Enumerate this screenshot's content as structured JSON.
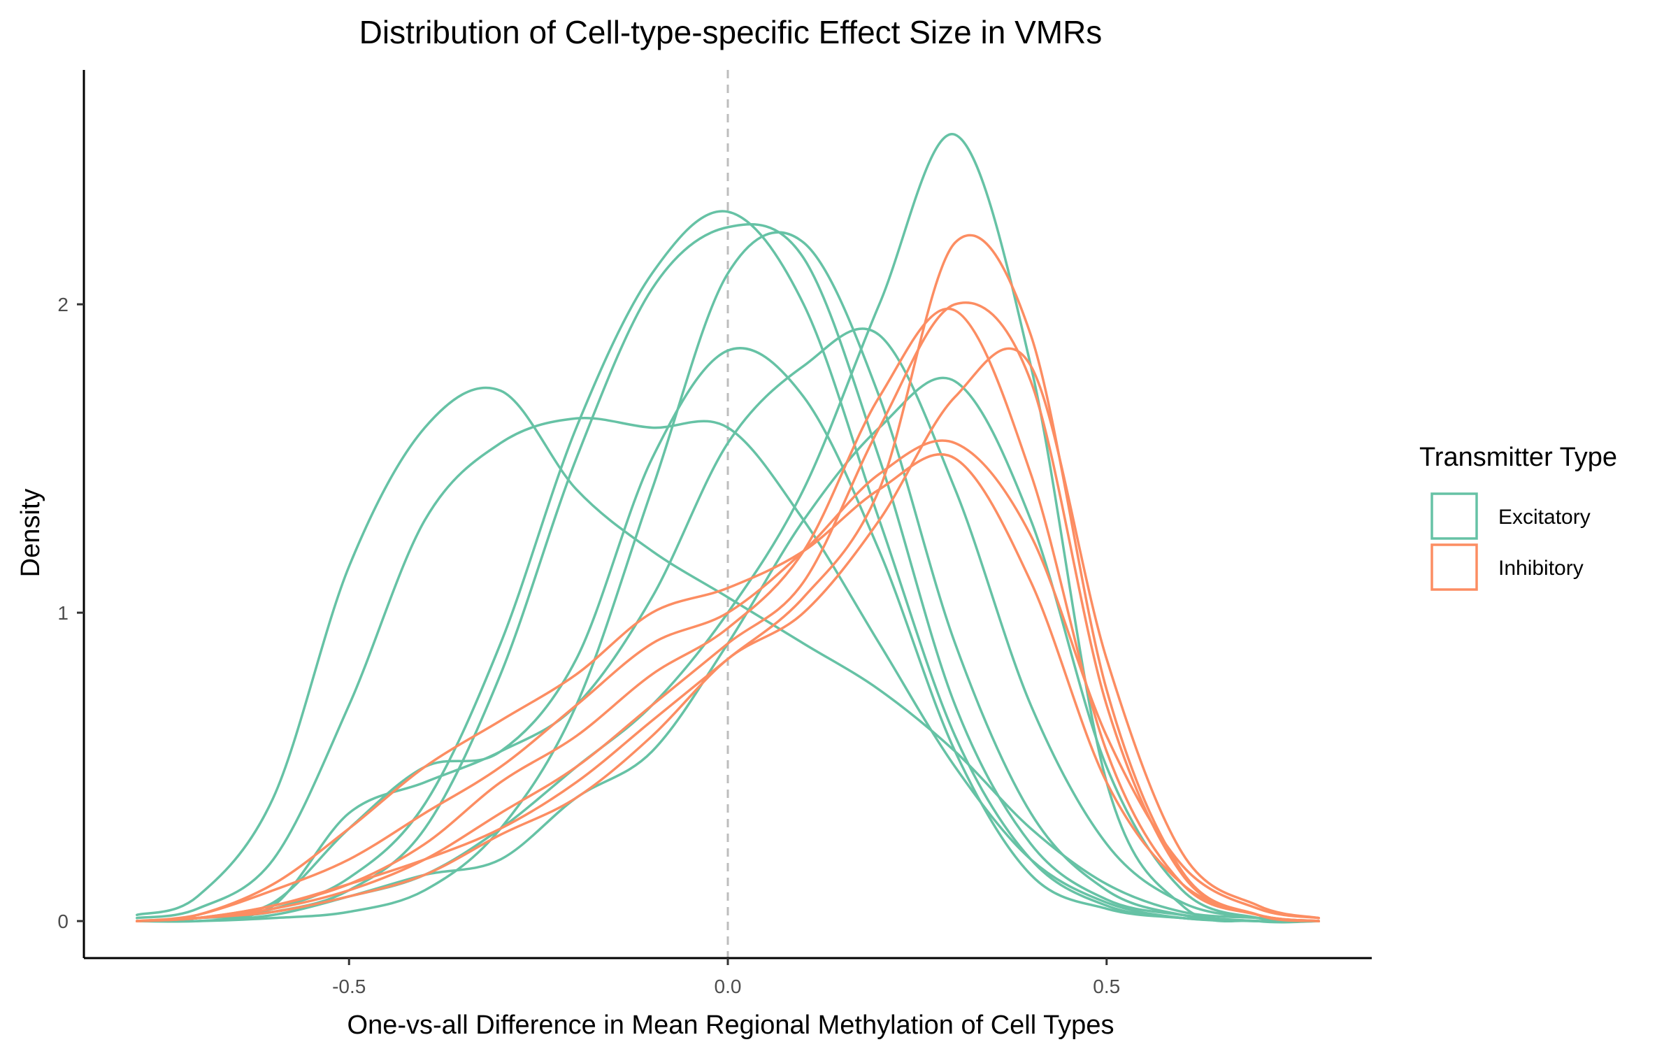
{
  "chart_data": {
    "type": "line",
    "title": "Distribution of Cell-type-specific Effect Size in VMRs",
    "xlabel": "One-vs-all Difference in Mean Regional Methylation of Cell Types",
    "ylabel": "Density",
    "xlim": [
      -0.85,
      0.85
    ],
    "ylim": [
      -0.12,
      2.76
    ],
    "x_ticks": [
      -0.5,
      0.0,
      0.5
    ],
    "x_tick_labels": [
      "-0.5",
      "0.0",
      "0.5"
    ],
    "y_ticks": [
      0,
      1,
      2
    ],
    "y_tick_labels": [
      "0",
      "1",
      "2"
    ],
    "reference_line": {
      "x": 0.0,
      "style": "dashed",
      "color": "#bdbdbd"
    },
    "grid": false,
    "legend": {
      "title": "Transmitter Type",
      "placement": "right",
      "entries": [
        {
          "label": "Excitatory",
          "color": "#66c2a5"
        },
        {
          "label": "Inhibitory",
          "color": "#fc8d62"
        }
      ]
    },
    "x": [
      -0.78,
      -0.7,
      -0.6,
      -0.5,
      -0.4,
      -0.3,
      -0.2,
      -0.1,
      0.0,
      0.1,
      0.2,
      0.3,
      0.4,
      0.5,
      0.6,
      0.7,
      0.78
    ],
    "series": [
      {
        "group": "Excitatory",
        "color": "#66c2a5",
        "values": [
          0.0,
          0.01,
          0.04,
          0.14,
          0.38,
          0.9,
          1.6,
          2.1,
          2.3,
          2.0,
          1.3,
          0.6,
          0.2,
          0.05,
          0.01,
          0.0,
          0.0
        ]
      },
      {
        "group": "Excitatory",
        "color": "#66c2a5",
        "values": [
          0.0,
          0.01,
          0.03,
          0.1,
          0.3,
          0.8,
          1.5,
          2.05,
          2.25,
          2.15,
          1.5,
          0.7,
          0.25,
          0.07,
          0.02,
          0.0,
          0.0
        ]
      },
      {
        "group": "Excitatory",
        "color": "#66c2a5",
        "values": [
          0.0,
          0.0,
          0.01,
          0.03,
          0.1,
          0.3,
          0.7,
          1.4,
          2.1,
          2.2,
          1.7,
          0.9,
          0.35,
          0.1,
          0.02,
          0.0,
          0.0
        ]
      },
      {
        "group": "Excitatory",
        "color": "#66c2a5",
        "values": [
          0.02,
          0.08,
          0.4,
          1.15,
          1.6,
          1.72,
          1.4,
          1.2,
          1.05,
          0.9,
          0.75,
          0.55,
          0.3,
          0.12,
          0.03,
          0.01,
          0.0
        ]
      },
      {
        "group": "Excitatory",
        "color": "#66c2a5",
        "values": [
          0.01,
          0.04,
          0.2,
          0.7,
          1.3,
          1.55,
          1.63,
          1.6,
          1.6,
          1.3,
          0.9,
          0.5,
          0.2,
          0.06,
          0.01,
          0.0,
          0.0
        ]
      },
      {
        "group": "Excitatory",
        "color": "#66c2a5",
        "values": [
          0.0,
          0.01,
          0.06,
          0.3,
          0.5,
          0.55,
          0.85,
          1.5,
          1.85,
          1.7,
          1.2,
          0.55,
          0.15,
          0.04,
          0.01,
          0.0,
          0.0
        ]
      },
      {
        "group": "Excitatory",
        "color": "#66c2a5",
        "values": [
          0.0,
          0.01,
          0.05,
          0.35,
          0.45,
          0.55,
          0.7,
          1.05,
          1.55,
          1.8,
          1.9,
          1.4,
          0.7,
          0.25,
          0.06,
          0.01,
          0.0
        ]
      },
      {
        "group": "Excitatory",
        "color": "#66c2a5",
        "values": [
          0.0,
          0.01,
          0.03,
          0.08,
          0.15,
          0.3,
          0.5,
          0.7,
          1.0,
          1.4,
          2.0,
          2.55,
          1.8,
          0.45,
          0.05,
          0.0,
          0.0
        ]
      },
      {
        "group": "Excitatory",
        "color": "#66c2a5",
        "values": [
          0.0,
          0.0,
          0.02,
          0.08,
          0.15,
          0.2,
          0.4,
          0.55,
          0.9,
          1.3,
          1.6,
          1.75,
          1.3,
          0.5,
          0.1,
          0.01,
          0.0
        ]
      },
      {
        "group": "Inhibitory",
        "color": "#fc8d62",
        "values": [
          0.0,
          0.02,
          0.12,
          0.3,
          0.5,
          0.65,
          0.8,
          1.0,
          1.08,
          1.2,
          1.4,
          1.5,
          1.1,
          0.45,
          0.12,
          0.02,
          0.0
        ]
      },
      {
        "group": "Inhibitory",
        "color": "#fc8d62",
        "values": [
          0.0,
          0.02,
          0.1,
          0.2,
          0.35,
          0.5,
          0.7,
          0.9,
          1.0,
          1.2,
          1.45,
          1.55,
          1.25,
          0.6,
          0.18,
          0.04,
          0.01
        ]
      },
      {
        "group": "Inhibitory",
        "color": "#fc8d62",
        "values": [
          0.0,
          0.01,
          0.05,
          0.12,
          0.25,
          0.45,
          0.6,
          0.8,
          0.95,
          1.2,
          1.7,
          1.98,
          1.45,
          0.55,
          0.12,
          0.02,
          0.0
        ]
      },
      {
        "group": "Inhibitory",
        "color": "#fc8d62",
        "values": [
          0.0,
          0.01,
          0.04,
          0.1,
          0.2,
          0.35,
          0.5,
          0.7,
          0.9,
          1.1,
          1.6,
          2.0,
          1.75,
          0.7,
          0.15,
          0.02,
          0.0
        ]
      },
      {
        "group": "Inhibitory",
        "color": "#fc8d62",
        "values": [
          0.0,
          0.01,
          0.05,
          0.12,
          0.2,
          0.3,
          0.45,
          0.65,
          0.85,
          1.05,
          1.4,
          2.2,
          1.9,
          0.75,
          0.16,
          0.02,
          0.0
        ]
      },
      {
        "group": "Inhibitory",
        "color": "#fc8d62",
        "values": [
          0.0,
          0.01,
          0.03,
          0.08,
          0.15,
          0.28,
          0.4,
          0.6,
          0.85,
          1.0,
          1.3,
          1.7,
          1.8,
          0.85,
          0.22,
          0.05,
          0.01
        ]
      }
    ]
  }
}
